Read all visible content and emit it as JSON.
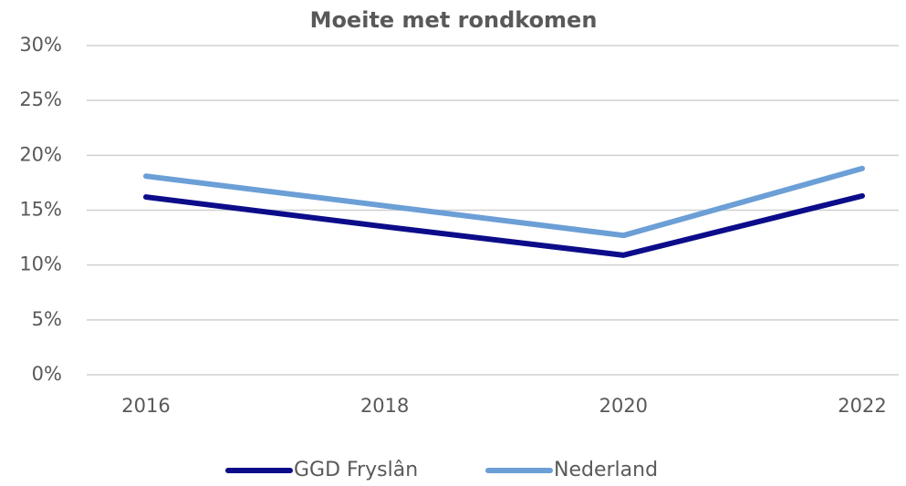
{
  "chart_data": {
    "type": "line",
    "title": "Moeite met rondkomen",
    "categories": [
      "2016",
      "2018",
      "2020",
      "2022"
    ],
    "series": [
      {
        "name": "GGD Fryslân",
        "color": "#0c0c8a",
        "values": [
          16.2,
          13.5,
          10.9,
          16.3
        ]
      },
      {
        "name": "Nederland",
        "color": "#6b9fd6",
        "values": [
          18.1,
          15.4,
          12.7,
          18.8
        ]
      }
    ],
    "ylim": [
      0,
      30
    ],
    "yticks": [
      {
        "value": 0,
        "label": "0%"
      },
      {
        "value": 5,
        "label": "5%"
      },
      {
        "value": 10,
        "label": "10%"
      },
      {
        "value": 15,
        "label": "15%"
      },
      {
        "value": 20,
        "label": "20%"
      },
      {
        "value": 25,
        "label": "25%"
      },
      {
        "value": 30,
        "label": "30%"
      }
    ],
    "grid": true,
    "legend": "bottom"
  }
}
